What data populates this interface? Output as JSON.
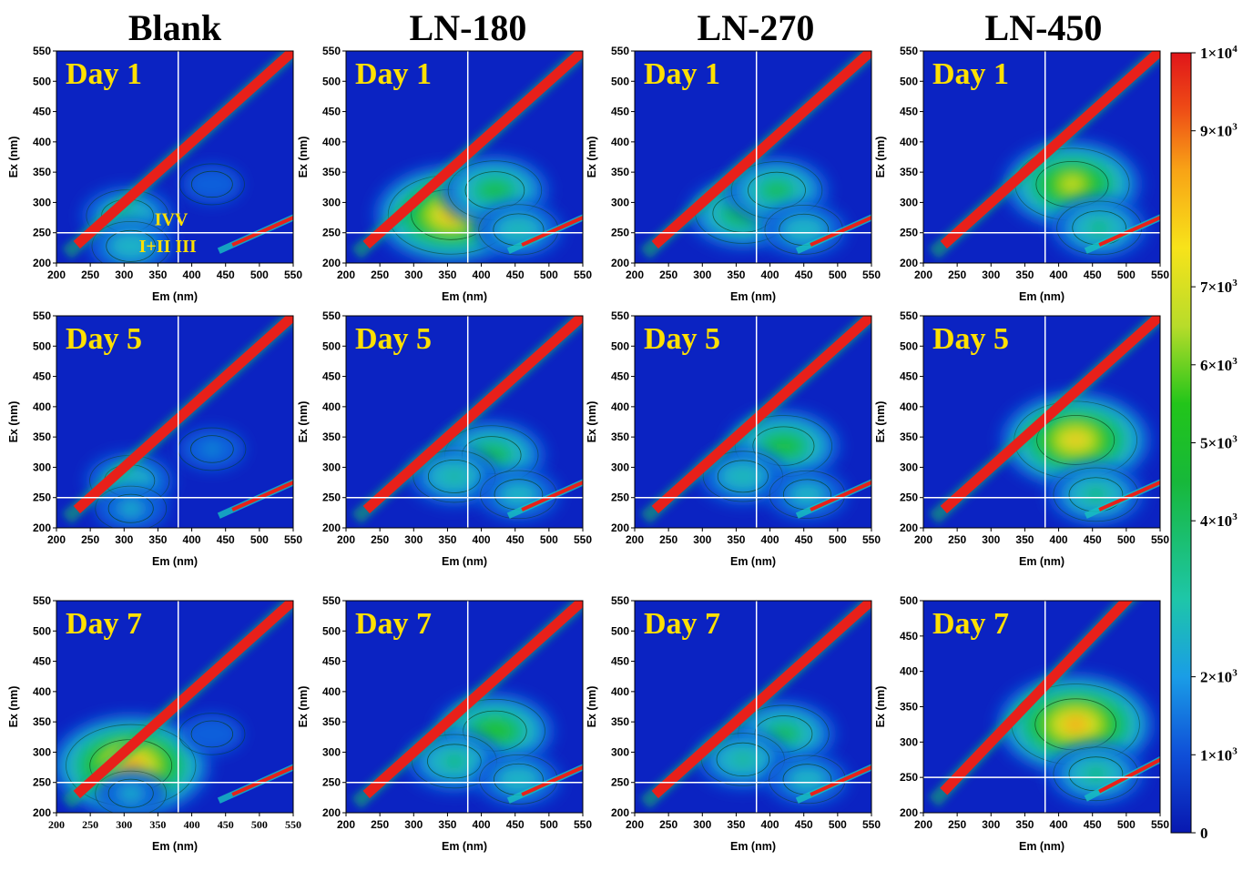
{
  "columns": [
    "Blank",
    "LN-180",
    "LN-270",
    "LN-450"
  ],
  "colorbar": {
    "ticks": [
      {
        "value": 10000,
        "label": "1×10",
        "sup": "4"
      },
      {
        "value": 9000,
        "label": "9×10",
        "sup": "3"
      },
      {
        "value": 7000,
        "label": "7×10",
        "sup": "3"
      },
      {
        "value": 6000,
        "label": "6×10",
        "sup": "3"
      },
      {
        "value": 5000,
        "label": "5×10",
        "sup": "3"
      },
      {
        "value": 4000,
        "label": "4×10",
        "sup": "3"
      },
      {
        "value": 2000,
        "label": "2×10",
        "sup": "3"
      },
      {
        "value": 1000,
        "label": "1×10",
        "sup": "3"
      },
      {
        "value": 0,
        "label": "0",
        "sup": ""
      }
    ]
  },
  "chart_data": {
    "type": "heatmap",
    "xlabel": "Em (nm)",
    "ylabel": "Ex (nm)",
    "xlim": [
      200,
      550
    ],
    "ylim": [
      200,
      550
    ],
    "xticks": [
      200,
      250,
      300,
      350,
      400,
      450,
      500,
      550
    ],
    "yticks": [
      200,
      250,
      300,
      350,
      400,
      450,
      500,
      550
    ],
    "colors": {
      "background": "#0b23c2",
      "scatter": "#e8201a"
    },
    "region_labels": {
      "upper": "IVV",
      "lower": "I+II III"
    },
    "reference_lines": {
      "em": 380,
      "ex": 250
    },
    "panels": [
      {
        "sample": "Blank",
        "day": "Day 1",
        "peaks": [
          {
            "em": 305,
            "ex": 278,
            "intensity": 3500
          },
          {
            "em": 310,
            "ex": 228,
            "intensity": 3000
          },
          {
            "em": 430,
            "ex": 330,
            "intensity": 1500
          }
        ],
        "region_labels": true
      },
      {
        "sample": "LN-180",
        "day": "Day 1",
        "peaks": [
          {
            "em": 355,
            "ex": 280,
            "intensity": 8500
          },
          {
            "em": 420,
            "ex": 320,
            "intensity": 4800
          },
          {
            "em": 455,
            "ex": 255,
            "intensity": 3200
          }
        ]
      },
      {
        "sample": "LN-270",
        "day": "Day 1",
        "peaks": [
          {
            "em": 360,
            "ex": 282,
            "intensity": 5000
          },
          {
            "em": 410,
            "ex": 320,
            "intensity": 4500
          },
          {
            "em": 450,
            "ex": 255,
            "intensity": 3000
          }
        ]
      },
      {
        "sample": "LN-450",
        "day": "Day 1",
        "peaks": [
          {
            "em": 420,
            "ex": 330,
            "intensity": 7200
          },
          {
            "em": 460,
            "ex": 258,
            "intensity": 3800
          }
        ]
      },
      {
        "sample": "Blank",
        "day": "Day 5",
        "peaks": [
          {
            "em": 308,
            "ex": 278,
            "intensity": 3200
          },
          {
            "em": 310,
            "ex": 232,
            "intensity": 2200
          },
          {
            "em": 430,
            "ex": 330,
            "intensity": 1800
          }
        ]
      },
      {
        "sample": "LN-180",
        "day": "Day 5",
        "peaks": [
          {
            "em": 415,
            "ex": 320,
            "intensity": 4800
          },
          {
            "em": 360,
            "ex": 285,
            "intensity": 3500
          },
          {
            "em": 455,
            "ex": 255,
            "intensity": 2800
          }
        ]
      },
      {
        "sample": "LN-270",
        "day": "Day 5",
        "peaks": [
          {
            "em": 420,
            "ex": 335,
            "intensity": 5200
          },
          {
            "em": 360,
            "ex": 285,
            "intensity": 3200
          },
          {
            "em": 455,
            "ex": 255,
            "intensity": 2700
          }
        ]
      },
      {
        "sample": "LN-450",
        "day": "Day 5",
        "peaks": [
          {
            "em": 425,
            "ex": 345,
            "intensity": 8200
          },
          {
            "em": 455,
            "ex": 255,
            "intensity": 3800
          }
        ]
      },
      {
        "sample": "Blank",
        "day": "Day 7",
        "peaks": [
          {
            "em": 310,
            "ex": 278,
            "intensity": 9000
          },
          {
            "em": 310,
            "ex": 232,
            "intensity": 2200
          },
          {
            "em": 430,
            "ex": 330,
            "intensity": 1600
          }
        ]
      },
      {
        "sample": "LN-180",
        "day": "Day 7",
        "peaks": [
          {
            "em": 420,
            "ex": 335,
            "intensity": 5600
          },
          {
            "em": 360,
            "ex": 285,
            "intensity": 3800
          },
          {
            "em": 455,
            "ex": 255,
            "intensity": 3000
          }
        ]
      },
      {
        "sample": "LN-270",
        "day": "Day 7",
        "peaks": [
          {
            "em": 420,
            "ex": 330,
            "intensity": 4500
          },
          {
            "em": 360,
            "ex": 288,
            "intensity": 3600
          },
          {
            "em": 455,
            "ex": 255,
            "intensity": 2800
          }
        ]
      },
      {
        "sample": "LN-450",
        "day": "Day 7",
        "ylim": [
          200,
          500
        ],
        "yticks": [
          200,
          250,
          300,
          350,
          400,
          450,
          500
        ],
        "peaks": [
          {
            "em": 425,
            "ex": 325,
            "intensity": 8800
          },
          {
            "em": 455,
            "ex": 255,
            "intensity": 3800
          }
        ]
      }
    ]
  }
}
